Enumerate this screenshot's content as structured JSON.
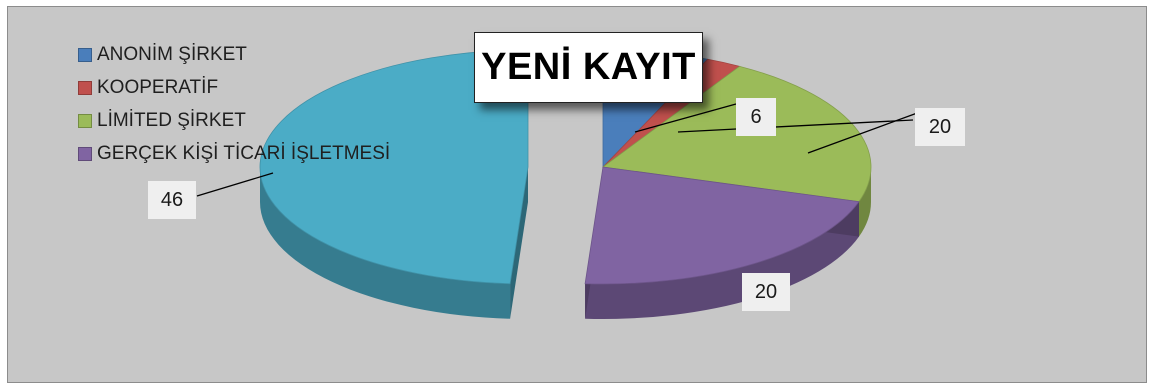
{
  "chart_data": {
    "type": "pie",
    "title": "YENİ KAYIT",
    "categories": [
      "ANONİM ŞİRKET",
      "KOOPERATİF",
      "LİMİTED ŞİRKET",
      "GERÇEK KİŞİ TİCARİ İŞLETMESİ",
      ""
    ],
    "values": [
      6,
      2,
      20,
      20,
      46
    ],
    "data_labels": [
      "6",
      "",
      "20",
      "20",
      "46"
    ],
    "colors": [
      "#4a7ebb",
      "#c0504d",
      "#9bbb59",
      "#8064a2",
      "#4bacc6"
    ],
    "exploded": true,
    "three_d": true,
    "legend_position": "top-left"
  }
}
